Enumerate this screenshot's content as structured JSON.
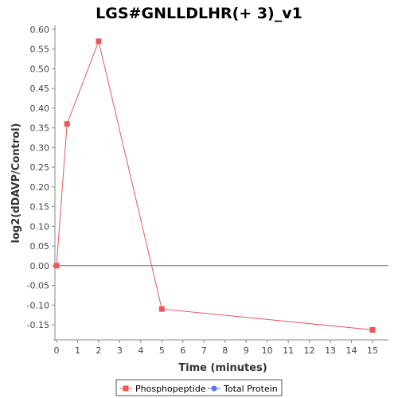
{
  "chart_data": {
    "type": "line",
    "title": "LGS#GNLLDLHR(+ 3)_v1",
    "xlabel": "Time (minutes)",
    "ylabel": "log2(dDAVP/Control)",
    "xlim": [
      0,
      15.5
    ],
    "ylim": [
      -0.195,
      0.615
    ],
    "xticks": [
      0,
      1,
      2,
      3,
      4,
      5,
      6,
      7,
      8,
      9,
      10,
      11,
      12,
      13,
      14,
      15
    ],
    "yticks": [
      0.6,
      0.55,
      0.5,
      0.45,
      0.4,
      0.35,
      0.3,
      0.25,
      0.2,
      0.15,
      0.1,
      0.05,
      0.0,
      -0.05,
      -0.1,
      -0.15
    ],
    "ytick_labels": [
      "0.60",
      "0.55",
      "0.50",
      "0.45",
      "0.40",
      "0.35",
      "0.30",
      "0.25",
      "0.20",
      "0.15",
      "0.10",
      "0.05",
      "0.00",
      "-0.05",
      "-0.10",
      "-0.15"
    ],
    "zero_line": true,
    "grid": false,
    "series": [
      {
        "name": "Phosphopeptide",
        "color": "#e8585a",
        "marker": "square",
        "x": [
          0,
          0.5,
          2,
          5,
          15
        ],
        "y": [
          0.0,
          0.36,
          0.57,
          -0.11,
          -0.163
        ]
      },
      {
        "name": "Total Protein",
        "color": "#5b6ff0",
        "marker": "circle",
        "x": [],
        "y": []
      }
    ],
    "legend": {
      "position": "bottom-center"
    }
  }
}
